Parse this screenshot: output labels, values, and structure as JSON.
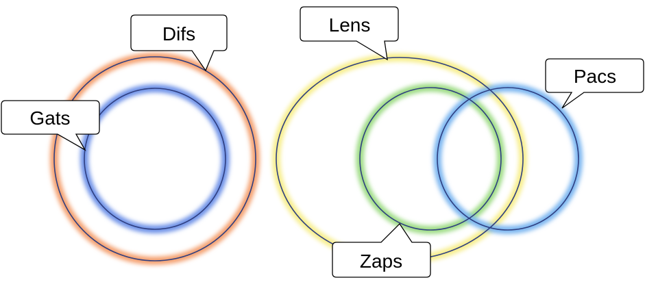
{
  "diagram": {
    "sets": [
      {
        "id": "difs",
        "label": "Difs",
        "glow": "#f4a070"
      },
      {
        "id": "gats",
        "label": "Gats",
        "glow": "#6f93e8"
      },
      {
        "id": "lens",
        "label": "Lens",
        "glow": "#f7ee8c"
      },
      {
        "id": "zaps",
        "label": "Zaps",
        "glow": "#9fdc86"
      },
      {
        "id": "pacs",
        "label": "Pacs",
        "glow": "#7cb6f0"
      }
    ],
    "relations": [
      {
        "type": "contains",
        "outer": "difs",
        "inner": "gats"
      },
      {
        "type": "overlap",
        "sets": [
          "lens",
          "zaps"
        ]
      },
      {
        "type": "overlap",
        "sets": [
          "zaps",
          "pacs"
        ]
      },
      {
        "type": "overlap",
        "sets": [
          "lens",
          "pacs"
        ]
      }
    ],
    "colors": {
      "outline": "#2f3f80",
      "callout_border": "#000000",
      "callout_fill": "#ffffff",
      "text": "#000000"
    }
  }
}
